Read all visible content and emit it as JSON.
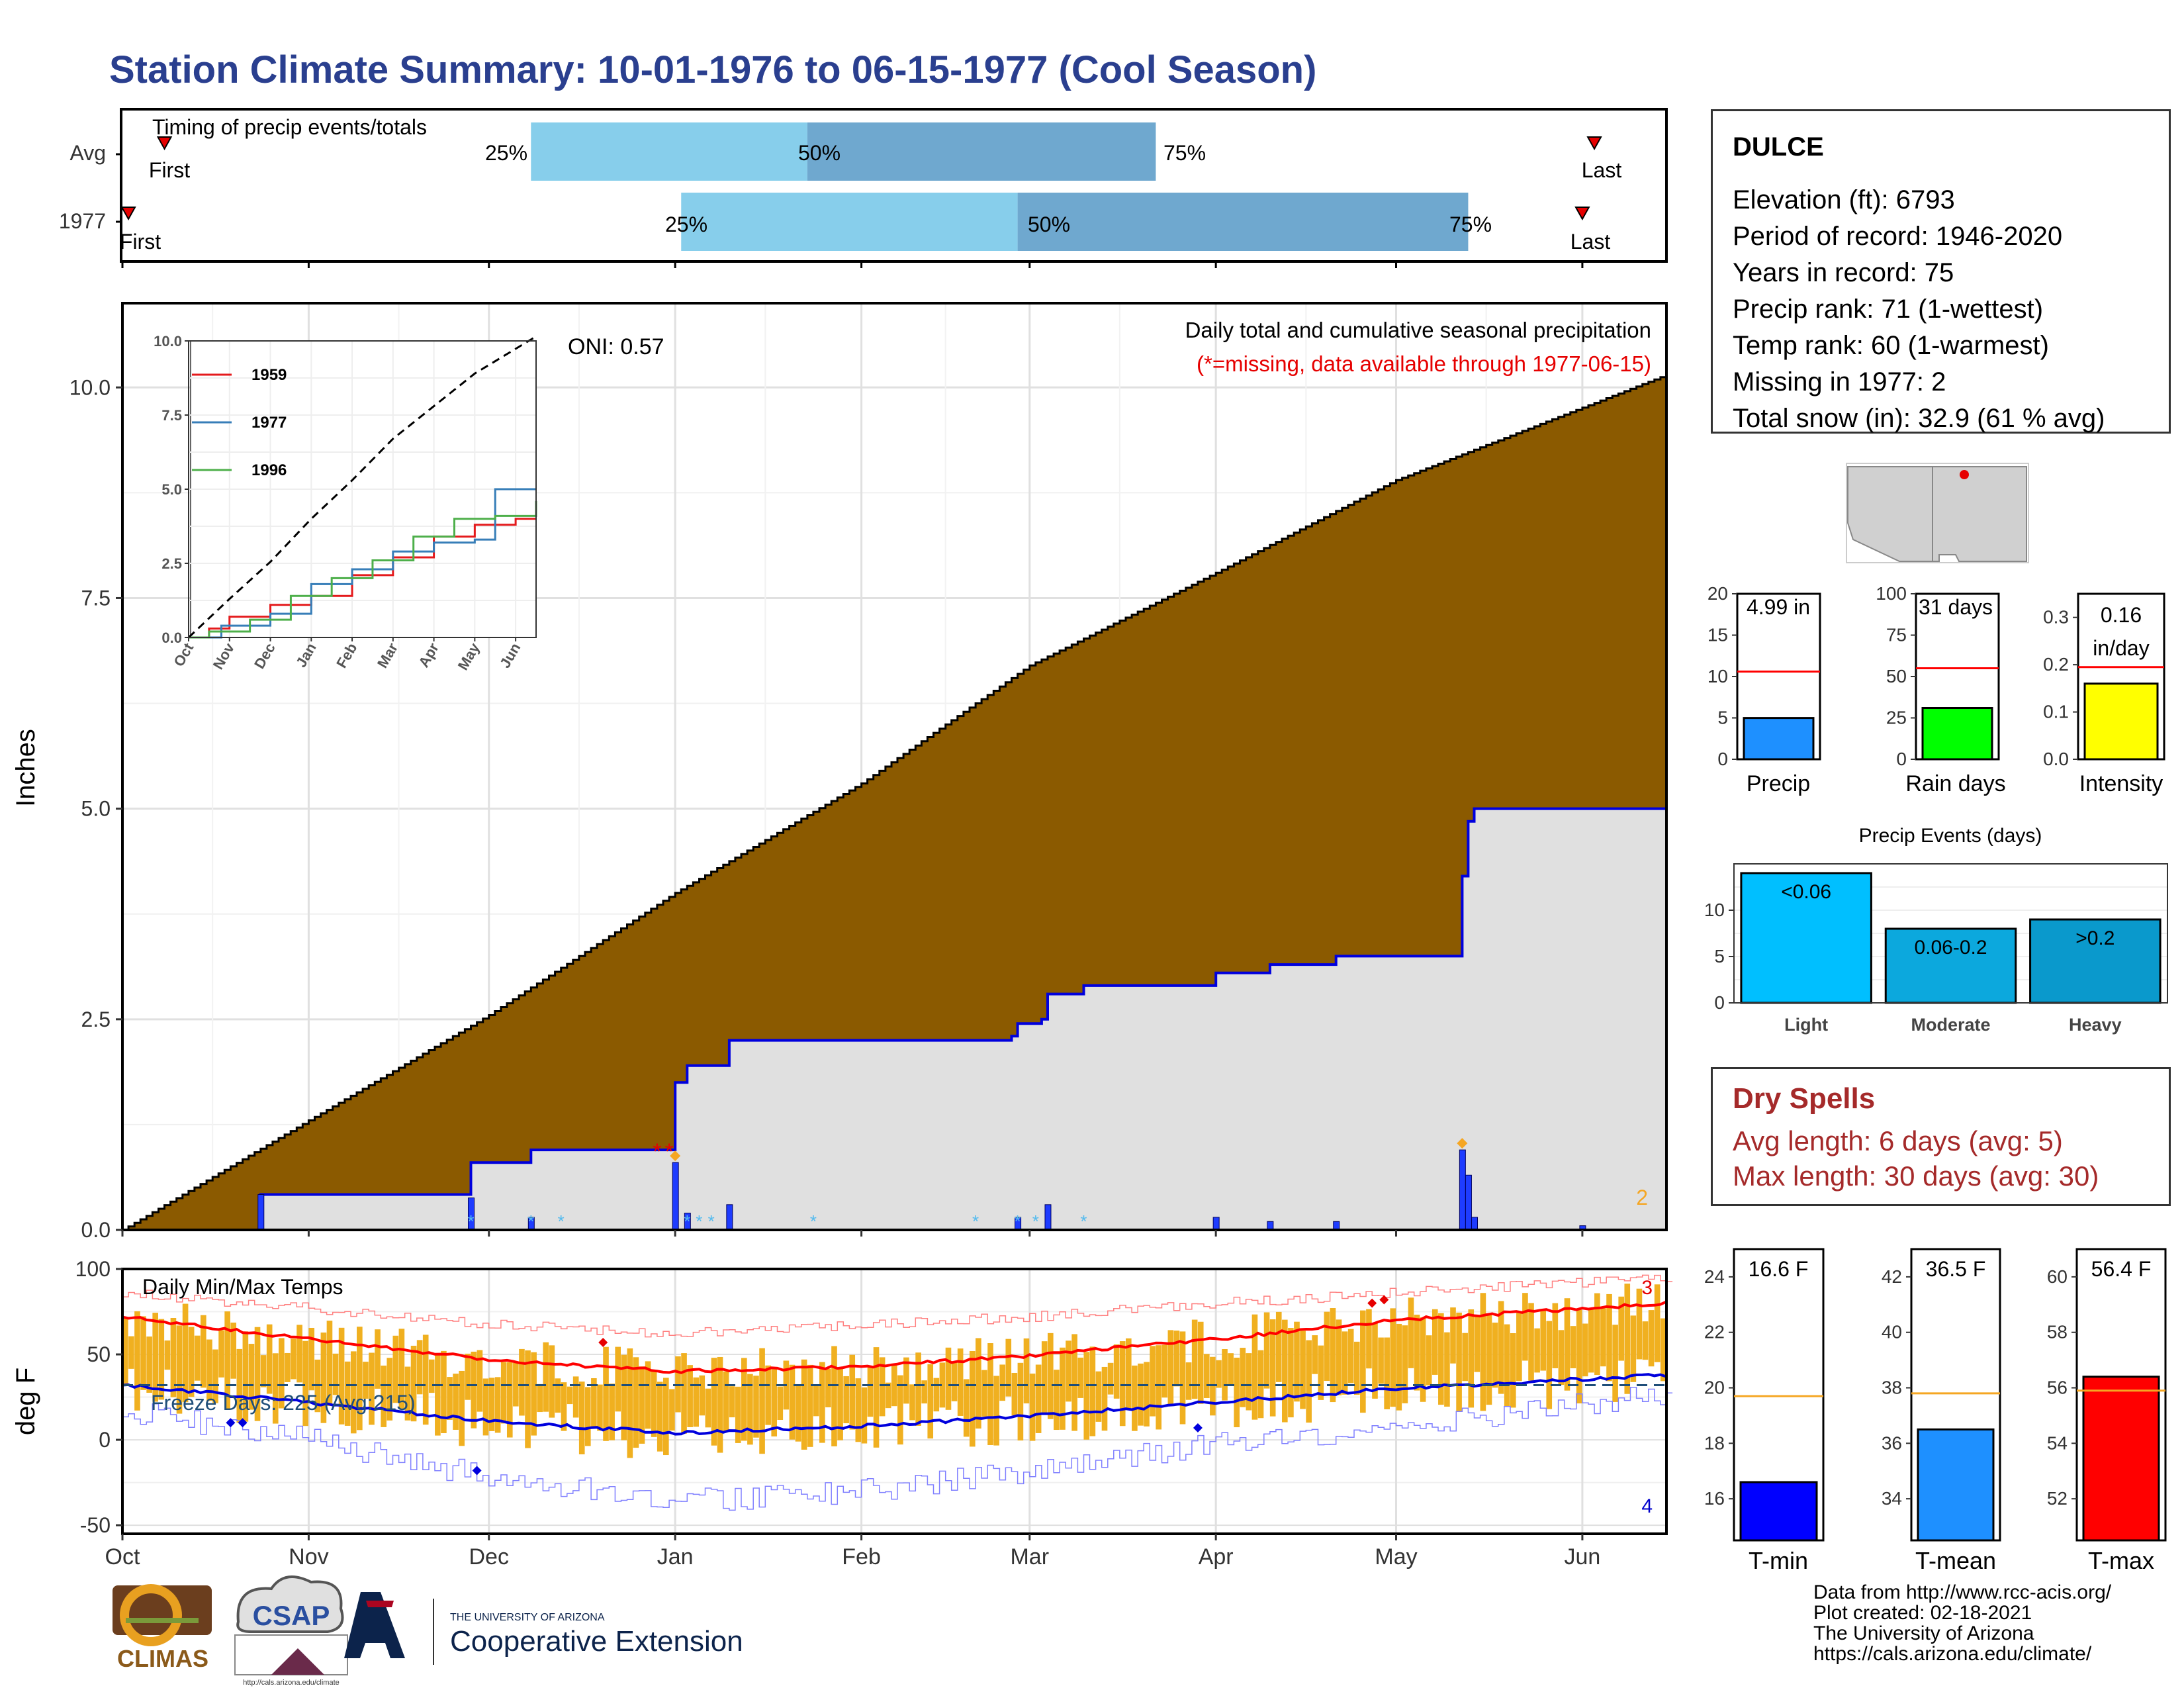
{
  "page": {
    "title": "Station Climate Summary: 10-01-1976 to 06-15-1977 (Cool Season)",
    "title_color": "#2a3f8f"
  },
  "timing": {
    "title": "Timing of precip events/totals",
    "rows": [
      {
        "label": "Avg",
        "first": "First",
        "last": "Last",
        "q25": "25%",
        "q50": "50%",
        "q75": "75%"
      },
      {
        "label": "1977",
        "first": "First",
        "last": "Last",
        "q25": "25%",
        "q50": "50%",
        "q75": "75%"
      }
    ]
  },
  "main": {
    "ylabel": "Inches",
    "oni": "ONI: 0.57",
    "caption": "Daily total and cumulative seasonal precipitation",
    "missing_note": "(*=missing, data available through 1977-06-15)",
    "missing_count": "2"
  },
  "inset": {
    "legend": [
      "1959",
      "1977",
      "1996"
    ]
  },
  "temps": {
    "ylabel": "deg F",
    "title": "Daily Min/Max Temps",
    "freeze": "Freeze Days: 225 (Avg:215)",
    "high_count": "3",
    "low_count": "4"
  },
  "station": {
    "name": "DULCE",
    "lines": [
      "Elevation (ft): 6793",
      "Period of record: 1946-2020",
      "Years in record: 75",
      "Precip rank: 71 (1-wettest)",
      "Temp rank: 60 (1-warmest)",
      "Missing in 1977: 2",
      "Total snow (in): 32.9 (61 % avg)"
    ]
  },
  "mini_bars": {
    "precip": {
      "label": "Precip",
      "value_text": "4.99 in"
    },
    "rain_days": {
      "label": "Rain days",
      "value_text": "31 days"
    },
    "intensity": {
      "label": "Intensity",
      "value_text": "0.16",
      "value_unit": "in/day"
    }
  },
  "events": {
    "title": "Precip Events (days)"
  },
  "dry_spells": {
    "title": "Dry Spells",
    "avg": "Avg length: 6 days (avg: 5)",
    "max": "Max length: 30 days (avg: 30)"
  },
  "temp_bars": {
    "tmin": {
      "label": "T-min",
      "value_text": "16.6 F"
    },
    "tmean": {
      "label": "T-mean",
      "value_text": "36.5 F"
    },
    "tmax": {
      "label": "T-max",
      "value_text": "56.4 F"
    }
  },
  "credits": [
    "Data from http://www.rcc-acis.org/",
    "Plot created: 02-18-2021",
    "The University of Arizona",
    "https://cals.arizona.edu/climate/"
  ],
  "logos": {
    "climas": "CLIMAS",
    "csap": "CSAP",
    "csap_url": "http://cals.arizona.edu/climate",
    "ua_small": "THE UNIVERSITY OF ARIZONA",
    "ua_big": "Cooperative Extension"
  },
  "chart_data": [
    {
      "id": "timing",
      "type": "bar",
      "title": "Timing of precip events/totals",
      "categories": [
        "Avg",
        "1977"
      ],
      "x_ticks": [
        "Oct",
        "Nov",
        "Dec",
        "Jan",
        "Feb",
        "Mar",
        "Apr",
        "May",
        "Jun"
      ],
      "series": [
        {
          "name": "Avg",
          "first": "1976-10-08",
          "q25": "1976-12-08",
          "q50": "1977-01-23",
          "q75": "1977-03-22",
          "last": "1977-06-03"
        },
        {
          "name": "1977",
          "first": "1976-10-02",
          "q25": "1977-01-02",
          "q50": "1977-02-27",
          "q75": "1977-05-13",
          "last": "1977-06-01"
        }
      ]
    },
    {
      "id": "cumulative_precip",
      "type": "area",
      "title": "Daily total and cumulative seasonal precipitation",
      "ylabel": "Inches",
      "ylim": [
        0,
        11
      ],
      "y_ticks": [
        "0.0",
        "2.5",
        "5.0",
        "7.5",
        "10.0"
      ],
      "x_ticks": [
        "Oct",
        "Nov",
        "Dec",
        "Jan",
        "Feb",
        "Mar",
        "Apr",
        "May",
        "Jun"
      ],
      "average_cumulative": [
        [
          "1976-10-01",
          0.0
        ],
        [
          "1976-11-01",
          1.3
        ],
        [
          "1976-12-01",
          2.55
        ],
        [
          "1977-01-01",
          4.0
        ],
        [
          "1977-02-01",
          5.3
        ],
        [
          "1977-03-01",
          6.7
        ],
        [
          "1977-04-01",
          7.8
        ],
        [
          "1977-05-01",
          8.9
        ],
        [
          "1977-06-15",
          10.15
        ]
      ],
      "observed_cumulative": [
        [
          "1976-10-01",
          0.0
        ],
        [
          "1976-10-23",
          0.0
        ],
        [
          "1976-10-24",
          0.42
        ],
        [
          "1976-11-27",
          0.42
        ],
        [
          "1976-11-28",
          0.8
        ],
        [
          "1976-12-07",
          0.8
        ],
        [
          "1976-12-08",
          0.95
        ],
        [
          "1976-12-31",
          0.95
        ],
        [
          "1977-01-01",
          1.75
        ],
        [
          "1977-01-02",
          1.75
        ],
        [
          "1977-01-03",
          1.95
        ],
        [
          "1977-01-09",
          1.95
        ],
        [
          "1977-01-10",
          2.25
        ],
        [
          "1977-02-26",
          2.3
        ],
        [
          "1977-02-27",
          2.45
        ],
        [
          "1977-03-03",
          2.5
        ],
        [
          "1977-03-04",
          2.8
        ],
        [
          "1977-03-10",
          2.9
        ],
        [
          "1977-03-31",
          2.9
        ],
        [
          "1977-04-01",
          3.05
        ],
        [
          "1977-04-10",
          3.15
        ],
        [
          "1977-04-21",
          3.25
        ],
        [
          "1977-05-11",
          3.25
        ],
        [
          "1977-05-12",
          4.2
        ],
        [
          "1977-05-13",
          4.85
        ],
        [
          "1977-05-14",
          5.0
        ],
        [
          "1977-06-15",
          5.0
        ]
      ],
      "daily_precip": [
        [
          "1976-10-24",
          0.42
        ],
        [
          "1976-11-28",
          0.38
        ],
        [
          "1976-12-08",
          0.15
        ],
        [
          "1977-01-01",
          0.8
        ],
        [
          "1977-01-03",
          0.2
        ],
        [
          "1977-01-10",
          0.3
        ],
        [
          "1977-02-27",
          0.15
        ],
        [
          "1977-03-04",
          0.3
        ],
        [
          "1977-04-01",
          0.15
        ],
        [
          "1977-04-10",
          0.1
        ],
        [
          "1977-04-21",
          0.1
        ],
        [
          "1977-05-12",
          0.95
        ],
        [
          "1977-05-13",
          0.65
        ],
        [
          "1977-05-14",
          0.15
        ],
        [
          "1977-06-01",
          0.05
        ]
      ],
      "oni": 0.57
    },
    {
      "id": "inset_cumulative",
      "type": "line",
      "ylim": [
        0,
        10
      ],
      "y_ticks": [
        "0.0",
        "2.5",
        "5.0",
        "7.5",
        "10.0"
      ],
      "x_ticks": [
        "Oct",
        "Nov",
        "Dec",
        "Jan",
        "Feb",
        "Mar",
        "Apr",
        "May",
        "Jun"
      ],
      "series": [
        {
          "name": "1959",
          "color": "#e41a1c",
          "points": [
            [
              0,
              0
            ],
            [
              0.5,
              0.3
            ],
            [
              1,
              0.7
            ],
            [
              2,
              1.1
            ],
            [
              3,
              1.4
            ],
            [
              4,
              2.1
            ],
            [
              5,
              2.7
            ],
            [
              6,
              3.4
            ],
            [
              7,
              3.8
            ],
            [
              8,
              4.0
            ],
            [
              8.5,
              4.0
            ]
          ]
        },
        {
          "name": "1977",
          "color": "#377eb8",
          "points": [
            [
              0,
              0
            ],
            [
              0.8,
              0.4
            ],
            [
              2,
              0.8
            ],
            [
              3,
              1.8
            ],
            [
              4,
              2.3
            ],
            [
              5,
              2.9
            ],
            [
              6,
              3.2
            ],
            [
              7,
              3.3
            ],
            [
              7.5,
              5.0
            ],
            [
              8.5,
              5.0
            ]
          ]
        },
        {
          "name": "1996",
          "color": "#4daf4a",
          "points": [
            [
              0,
              0
            ],
            [
              0.5,
              0.2
            ],
            [
              1.5,
              0.6
            ],
            [
              2.5,
              1.4
            ],
            [
              3.5,
              2.0
            ],
            [
              4.5,
              2.6
            ],
            [
              5.5,
              3.4
            ],
            [
              6.5,
              4.0
            ],
            [
              7.5,
              4.1
            ],
            [
              8.5,
              4.6
            ]
          ]
        },
        {
          "name": "avg",
          "color": "#000000",
          "dashed": true,
          "points": [
            [
              0,
              0
            ],
            [
              1,
              1.3
            ],
            [
              2,
              2.55
            ],
            [
              3,
              4.0
            ],
            [
              4,
              5.3
            ],
            [
              5,
              6.7
            ],
            [
              6,
              7.8
            ],
            [
              7,
              8.9
            ],
            [
              8.5,
              10.15
            ]
          ]
        }
      ]
    },
    {
      "id": "temperatures",
      "type": "bar",
      "title": "Daily Min/Max Temps",
      "ylabel": "deg F",
      "ylim": [
        -55,
        100
      ],
      "y_ticks": [
        "-50",
        "0",
        "50",
        "100"
      ],
      "x_ticks": [
        "Oct",
        "Nov",
        "Dec",
        "Jan",
        "Feb",
        "Mar",
        "Apr",
        "May",
        "Jun"
      ],
      "avg_max": [
        [
          "1976-10-01",
          72
        ],
        [
          "1976-11-01",
          59
        ],
        [
          "1976-12-01",
          47
        ],
        [
          "1977-01-01",
          40
        ],
        [
          "1977-02-01",
          43
        ],
        [
          "1977-03-01",
          49
        ],
        [
          "1977-04-01",
          59
        ],
        [
          "1977-05-01",
          70
        ],
        [
          "1977-06-15",
          80
        ]
      ],
      "avg_min": [
        [
          "1976-10-01",
          32
        ],
        [
          "1976-11-01",
          22
        ],
        [
          "1976-12-01",
          11
        ],
        [
          "1977-01-01",
          4
        ],
        [
          "1977-02-01",
          8
        ],
        [
          "1977-03-01",
          14
        ],
        [
          "1977-04-01",
          22
        ],
        [
          "1977-05-01",
          30
        ],
        [
          "1977-06-15",
          38
        ]
      ],
      "record_max": [
        [
          "1976-10-01",
          86
        ],
        [
          "1976-11-01",
          77
        ],
        [
          "1976-12-01",
          68
        ],
        [
          "1977-01-01",
          62
        ],
        [
          "1977-02-01",
          67
        ],
        [
          "1977-03-01",
          72
        ],
        [
          "1977-04-01",
          80
        ],
        [
          "1977-05-01",
          86
        ],
        [
          "1977-06-15",
          95
        ]
      ],
      "record_min": [
        [
          "1976-10-01",
          17
        ],
        [
          "1976-11-01",
          0
        ],
        [
          "1976-12-01",
          -22
        ],
        [
          "1977-01-01",
          -36
        ],
        [
          "1977-02-01",
          -30
        ],
        [
          "1977-03-01",
          -18
        ],
        [
          "1977-04-01",
          -2
        ],
        [
          "1977-05-01",
          8
        ],
        [
          "1977-06-15",
          27
        ]
      ],
      "freeze_line": 32,
      "freeze_days": 225,
      "freeze_days_avg": 215
    },
    {
      "id": "precip_total",
      "type": "bar",
      "categories": [
        "Precip"
      ],
      "values": [
        4.99
      ],
      "average": 10.6,
      "ylim": [
        0,
        20
      ],
      "y_ticks": [
        "0",
        "5",
        "10",
        "15",
        "20"
      ],
      "color": "#1e90ff"
    },
    {
      "id": "rain_days",
      "type": "bar",
      "categories": [
        "Rain days"
      ],
      "values": [
        31
      ],
      "average": 55,
      "ylim": [
        0,
        100
      ],
      "y_ticks": [
        "0",
        "25",
        "50",
        "75",
        "100"
      ],
      "color": "#00ff00"
    },
    {
      "id": "intensity",
      "type": "bar",
      "categories": [
        "Intensity"
      ],
      "values": [
        0.16
      ],
      "average": 0.195,
      "ylim": [
        0,
        0.35
      ],
      "y_ticks": [
        "0.0",
        "0.1",
        "0.2",
        "0.3"
      ],
      "color": "#ffff00"
    },
    {
      "id": "precip_events",
      "type": "bar",
      "title": "Precip Events (days)",
      "categories": [
        "Light",
        "Moderate",
        "Heavy"
      ],
      "values": [
        14,
        8,
        9
      ],
      "bar_labels": [
        "<0.06",
        "0.06-0.2",
        ">0.2"
      ],
      "ylim": [
        0,
        15
      ],
      "y_ticks": [
        "0",
        "5",
        "10"
      ],
      "colors": [
        "#00bfff",
        "#0ca8dd",
        "#0a99cc"
      ]
    },
    {
      "id": "tmin",
      "type": "bar",
      "categories": [
        "T-min"
      ],
      "values": [
        16.6
      ],
      "average": 19.7,
      "ylim": [
        14.5,
        25
      ],
      "y_ticks": [
        "16",
        "18",
        "20",
        "22",
        "24"
      ],
      "color": "#0000ff"
    },
    {
      "id": "tmean",
      "type": "bar",
      "categories": [
        "T-mean"
      ],
      "values": [
        36.5
      ],
      "average": 37.8,
      "ylim": [
        32.5,
        43
      ],
      "y_ticks": [
        "34",
        "36",
        "38",
        "40",
        "42"
      ],
      "color": "#1e90ff"
    },
    {
      "id": "tmax",
      "type": "bar",
      "categories": [
        "T-max"
      ],
      "values": [
        56.4
      ],
      "average": 55.9,
      "ylim": [
        50.5,
        61
      ],
      "y_ticks": [
        "52",
        "54",
        "56",
        "58",
        "60"
      ],
      "color": "#ff0000"
    }
  ]
}
